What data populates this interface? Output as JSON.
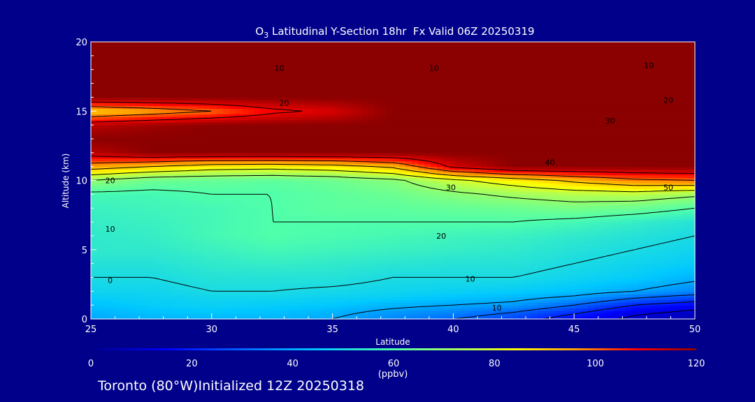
{
  "chart_data": {
    "type": "heatmap",
    "title": {
      "prefix": "O",
      "subscript": "3",
      "rest": " Latitudinal Y-Section 18hr  Fx Valid 06Z 20250319"
    },
    "xlabel": "Latitude",
    "ylabel": "Altitude (km)",
    "xlim": [
      25,
      50
    ],
    "ylim": [
      0,
      20
    ],
    "x_ticks": [
      "25",
      "30",
      "35",
      "40",
      "45",
      "50"
    ],
    "y_ticks": [
      "0",
      "5",
      "10",
      "15",
      "20"
    ],
    "colorbar": {
      "range": [
        0,
        120
      ],
      "ticks": [
        "0",
        "20",
        "40",
        "60",
        "80",
        "100",
        "120"
      ],
      "unit": "(ppbv)"
    },
    "grid": {
      "lat": [
        25,
        27.5,
        30,
        32.5,
        35,
        37.5,
        40,
        42.5,
        45,
        47.5,
        50
      ],
      "alt": [
        0,
        0.5,
        1,
        1.5,
        2,
        3,
        4,
        5,
        6,
        7,
        8,
        9,
        10,
        11,
        12,
        13,
        14,
        15,
        16,
        17,
        18,
        20
      ],
      "values": [
        [
          40,
          42,
          42,
          42,
          40,
          35,
          30,
          25,
          15,
          8,
          5
        ],
        [
          42,
          44,
          45,
          44,
          42,
          38,
          35,
          30,
          22,
          12,
          8
        ],
        [
          44,
          46,
          47,
          46,
          45,
          42,
          40,
          38,
          30,
          20,
          15
        ],
        [
          46,
          47,
          48,
          48,
          47,
          46,
          44,
          42,
          38,
          30,
          25
        ],
        [
          48,
          48,
          50,
          50,
          49,
          48,
          47,
          46,
          44,
          40,
          35
        ],
        [
          50,
          50,
          52,
          52,
          52,
          50,
          50,
          50,
          48,
          46,
          42
        ],
        [
          52,
          52,
          54,
          55,
          54,
          53,
          52,
          52,
          50,
          48,
          46
        ],
        [
          54,
          54,
          56,
          58,
          57,
          56,
          55,
          54,
          52,
          50,
          48
        ],
        [
          54,
          55,
          58,
          60,
          59,
          58,
          57,
          56,
          54,
          52,
          50
        ],
        [
          55,
          56,
          58,
          60,
          60,
          60,
          60,
          60,
          58,
          55,
          52
        ],
        [
          56,
          57,
          58,
          60,
          62,
          62,
          63,
          64,
          66,
          64,
          60
        ],
        [
          58,
          58,
          60,
          60,
          62,
          64,
          68,
          72,
          75,
          76,
          72
        ],
        [
          70,
          64,
          63,
          62,
          64,
          68,
          78,
          85,
          92,
          98,
          100
        ],
        [
          95,
          90,
          85,
          84,
          86,
          92,
          112,
          120,
          120,
          120,
          120
        ],
        [
          115,
          120,
          120,
          120,
          120,
          120,
          120,
          120,
          120,
          120,
          120
        ],
        [
          120,
          120,
          120,
          120,
          120,
          120,
          120,
          120,
          120,
          120,
          120
        ],
        [
          115,
          118,
          120,
          120,
          120,
          120,
          120,
          120,
          120,
          120,
          120
        ],
        [
          90,
          95,
          100,
          108,
          112,
          120,
          120,
          120,
          120,
          120,
          120
        ],
        [
          120,
          120,
          120,
          120,
          120,
          120,
          120,
          120,
          120,
          120,
          120
        ],
        [
          120,
          120,
          120,
          120,
          120,
          120,
          120,
          120,
          120,
          120,
          120
        ],
        [
          120,
          120,
          120,
          120,
          120,
          120,
          120,
          120,
          120,
          120,
          120
        ],
        [
          120,
          120,
          120,
          120,
          120,
          120,
          120,
          120,
          120,
          120,
          120
        ]
      ]
    },
    "contour_labels": [
      {
        "text": "0",
        "lat": 25.8,
        "alt": 2.6
      },
      {
        "text": "10",
        "lat": 25.8,
        "alt": 6.3
      },
      {
        "text": "20",
        "lat": 25.8,
        "alt": 9.8
      },
      {
        "text": "10",
        "lat": 41.8,
        "alt": 0.6
      },
      {
        "text": "10",
        "lat": 40.7,
        "alt": 2.7
      },
      {
        "text": "20",
        "lat": 39.5,
        "alt": 5.8
      },
      {
        "text": "30",
        "lat": 39.9,
        "alt": 9.3
      },
      {
        "text": "40",
        "lat": 44.0,
        "alt": 11.1
      },
      {
        "text": "50",
        "lat": 48.9,
        "alt": 9.3
      },
      {
        "text": "30",
        "lat": 46.5,
        "alt": 14.1
      },
      {
        "text": "20",
        "lat": 48.9,
        "alt": 15.6
      },
      {
        "text": "20",
        "lat": 33.0,
        "alt": 15.4
      },
      {
        "text": "10",
        "lat": 39.2,
        "alt": 17.9
      },
      {
        "text": "10",
        "lat": 32.8,
        "alt": 17.9
      },
      {
        "text": "10",
        "lat": 48.1,
        "alt": 18.1
      }
    ]
  },
  "footer": {
    "location": "Toronto (80°W)Initialized 12Z 20250318"
  },
  "colors": {
    "background": "#00008b",
    "axis": "#ffffff",
    "contour": "#000000"
  }
}
